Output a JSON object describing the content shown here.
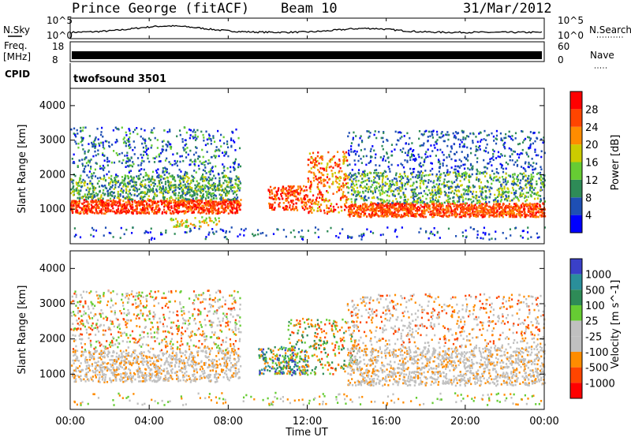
{
  "header": {
    "title": "Prince George (fitACF)",
    "beam": "Beam 10",
    "date": "31/Mar/2012"
  },
  "top_panels": {
    "nsky_label": "N.Sky",
    "nsky_ticks": [
      "10^5",
      "10^0"
    ],
    "nsearch_label": "N.Search",
    "nsearch_ticks": [
      "10^5",
      "10^0"
    ],
    "freq_label_1": "Freq.",
    "freq_label_2": "[MHz]",
    "freq_ticks": [
      "18",
      "8"
    ],
    "nave_label": "Nave",
    "nave_ticks": [
      "60",
      "0"
    ],
    "cpid_label": "CPID",
    "cpid_value": "twofsound 3501"
  },
  "colors": {
    "power": [
      "#0000ff",
      "#1e4fb4",
      "#2e8b57",
      "#66cc33",
      "#cccc00",
      "#ff8c00",
      "#ff4500",
      "#ff0000"
    ],
    "velocity": [
      "#3a40c8",
      "#2a8f9a",
      "#2e8b57",
      "#66cc33",
      "#c0c0c0",
      "#c0c0c0",
      "#ff8c00",
      "#ff4500",
      "#ff0000"
    ]
  },
  "chart_data": [
    {
      "type": "heatmap",
      "title": "Power",
      "xlabel": "",
      "ylabel": "Slant Range [km]",
      "xlim": [
        "00:00",
        "24:00"
      ],
      "ylim": [
        0,
        4500
      ],
      "y_ticks": [
        "1000",
        "2000",
        "3000",
        "4000"
      ],
      "colorbar_label": "Power [dB]",
      "colorbar_ticks": [
        "4",
        "8",
        "12",
        "16",
        "20",
        "24",
        "28"
      ],
      "colorbar_range": [
        0,
        32
      ]
    },
    {
      "type": "heatmap",
      "title": "Velocity",
      "xlabel": "Time UT",
      "ylabel": "Slant Range [km]",
      "x_ticks": [
        "00:00",
        "04:00",
        "08:00",
        "12:00",
        "16:00",
        "20:00",
        "00:00"
      ],
      "xlim": [
        "00:00",
        "24:00"
      ],
      "ylim": [
        0,
        4500
      ],
      "y_ticks": [
        "1000",
        "2000",
        "3000",
        "4000"
      ],
      "colorbar_label": "Velocity [m s^-1]",
      "colorbar_ticks": [
        "1000",
        "500",
        "100",
        "25",
        "-25",
        "-100",
        "-500",
        "-1000"
      ]
    }
  ]
}
